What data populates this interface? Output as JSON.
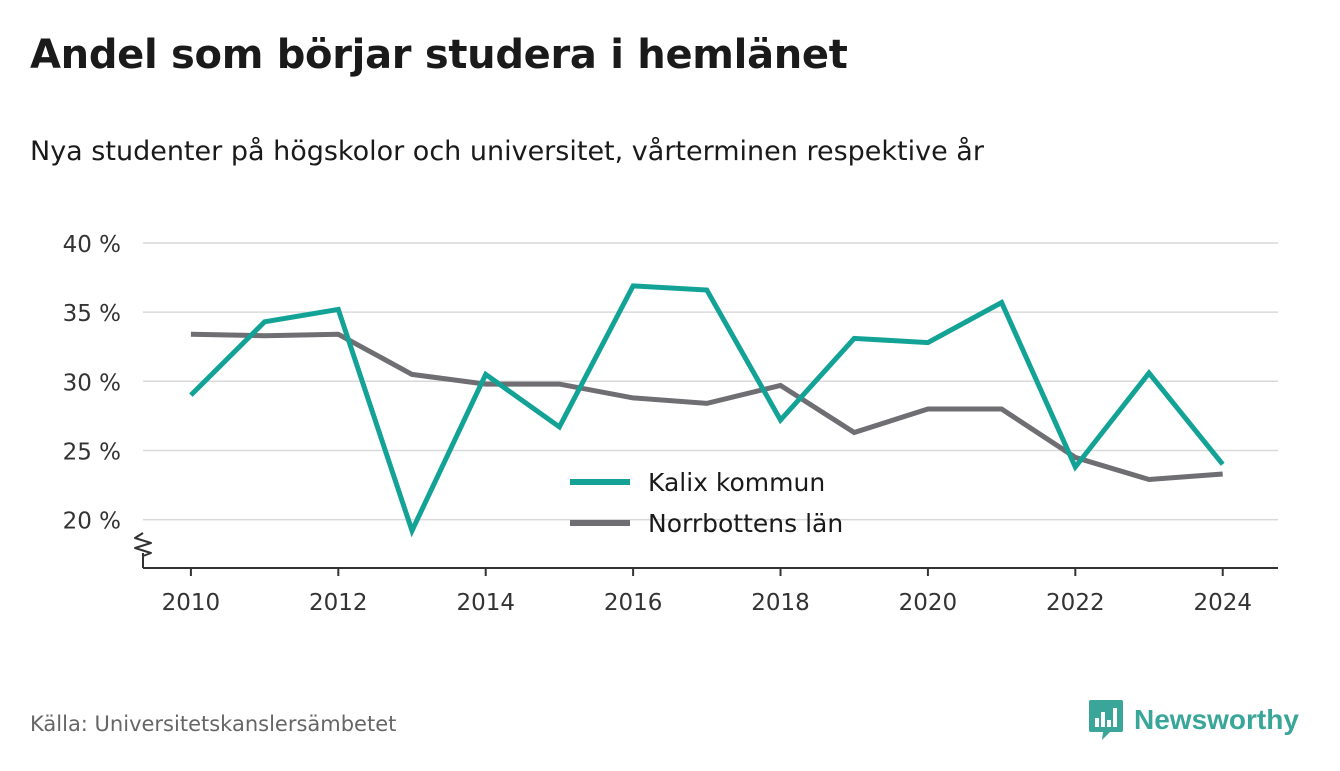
{
  "header": {
    "title": "Andel som börjar studera i hemlänet",
    "subtitle": "Nya studenter på högskolor och universitet, vårterminen respektive år"
  },
  "footer": {
    "source": "Källa: Universitetskanslersämbetet",
    "brand": "Newsworthy",
    "brand_icon": "bar-chart-speech-bubble-icon",
    "brand_color": "#3aa69a"
  },
  "chart_data": {
    "type": "line",
    "x": [
      2010,
      2011,
      2012,
      2013,
      2014,
      2015,
      2016,
      2017,
      2018,
      2019,
      2020,
      2021,
      2022,
      2023,
      2024
    ],
    "x_ticks": [
      "2010",
      "2012",
      "2014",
      "2016",
      "2018",
      "2020",
      "2022",
      "2024"
    ],
    "y_ticks": [
      "20 %",
      "25 %",
      "30 %",
      "35 %",
      "40 %"
    ],
    "ylim": [
      16.5,
      40
    ],
    "xlim": [
      2009.35,
      2024.75
    ],
    "grid": true,
    "y_axis_break": true,
    "legend_position": "center-bottom",
    "series": [
      {
        "name": "Kalix kommun",
        "color": "#13a396",
        "values": [
          29.0,
          34.3,
          35.2,
          19.2,
          30.5,
          26.7,
          36.9,
          36.6,
          27.2,
          33.1,
          32.8,
          35.7,
          23.8,
          30.6,
          24.0
        ]
      },
      {
        "name": "Norrbottens län",
        "color": "#6e6e73",
        "values": [
          33.4,
          33.3,
          33.4,
          30.5,
          29.8,
          29.8,
          28.8,
          28.4,
          29.7,
          26.3,
          28.0,
          28.0,
          24.5,
          22.9,
          23.3
        ]
      }
    ]
  }
}
